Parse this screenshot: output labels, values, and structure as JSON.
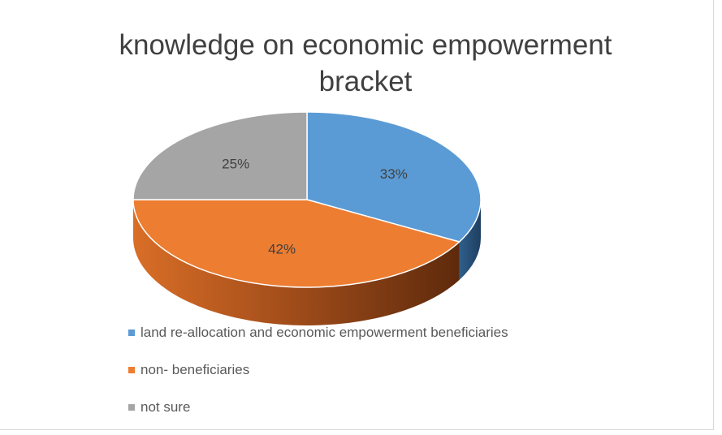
{
  "chart_data": {
    "type": "pie",
    "title_line1": "knowledge on economic empowerment",
    "title_line2": "bracket",
    "categories": [
      "land re-allocation and economic empowerment beneficiaries",
      "non- beneficiaries",
      "not sure"
    ],
    "values": [
      33,
      42,
      25
    ],
    "data_labels": [
      "33%",
      "42%",
      "25%"
    ],
    "colors": [
      "#5b9bd5",
      "#ed7d31",
      "#a5a5a5"
    ],
    "legend_position": "bottom",
    "style": "3d"
  }
}
